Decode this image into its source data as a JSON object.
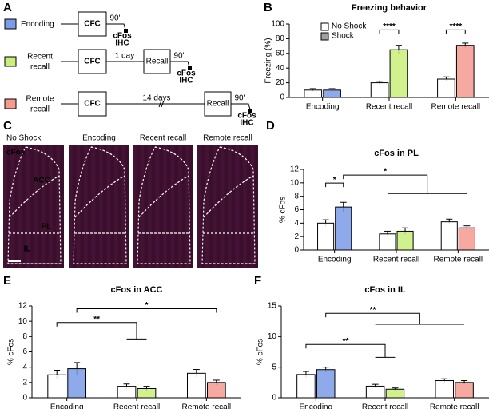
{
  "panel_a": {
    "panel": "A",
    "conditions": [
      {
        "label": "Encoding",
        "color": "#7b9be8"
      },
      {
        "label": "Recent recall",
        "color": "#c8ef7a"
      },
      {
        "label": "Remote recall",
        "color": "#f59a8f"
      }
    ],
    "cfc": "CFC",
    "recall": "Recall",
    "delay": "90'",
    "ihc": [
      "cFos",
      "IHC"
    ],
    "intervals": [
      "1 day",
      "14 days"
    ]
  },
  "panel_c": {
    "panel": "C",
    "columns": [
      "No Shock",
      "Encoding",
      "Recent recall",
      "Remote recall"
    ],
    "stain": "cFos",
    "regions": [
      "ACC",
      "PL",
      "IL"
    ]
  },
  "chart_data": [
    {
      "type": "bar",
      "panel": "B",
      "title": "Freezing behavior",
      "y_label": "Freezing (%)",
      "categories": [
        "Encoding",
        "Recent recall",
        "Remote recall"
      ],
      "series": [
        {
          "name": "No Shock",
          "color": "#ffffff",
          "values": [
            10,
            20,
            25
          ],
          "errors": [
            2,
            2,
            3
          ]
        },
        {
          "name": "Shock",
          "color": "#a0a0a0",
          "colors": [
            "#7b9be8",
            "#c8ef7a",
            "#f59a8f"
          ],
          "values": [
            10,
            65,
            71
          ],
          "errors": [
            2,
            6,
            3
          ]
        }
      ],
      "ylim": [
        0,
        100
      ],
      "yticks": [
        0,
        20,
        40,
        60,
        80,
        100
      ],
      "legend": "upper left",
      "annotations": [
        "****",
        "****"
      ]
    },
    {
      "type": "bar",
      "panel": "D",
      "title": "cFos in PL",
      "y_label": "% cFos",
      "categories": [
        "Encoding",
        "Recent recall",
        "Remote recall"
      ],
      "series": [
        {
          "name": "No Shock",
          "color": "#ffffff",
          "values": [
            4.0,
            2.4,
            4.2
          ],
          "errors": [
            0.5,
            0.4,
            0.4
          ]
        },
        {
          "name": "Shock",
          "color": "#a0a0a0",
          "colors": [
            "#7b9be8",
            "#c8ef7a",
            "#f59a8f"
          ],
          "values": [
            6.4,
            2.8,
            3.3
          ],
          "errors": [
            0.7,
            0.5,
            0.3
          ]
        }
      ],
      "ylim": [
        0,
        12
      ],
      "yticks": [
        0,
        2,
        4,
        6,
        8,
        10,
        12
      ],
      "annotations": [
        "*",
        "*"
      ]
    },
    {
      "type": "bar",
      "panel": "E",
      "title": "cFos in ACC",
      "y_label": "% cFos",
      "categories": [
        "Encoding",
        "Recent recall",
        "Remote recall"
      ],
      "series": [
        {
          "name": "No Shock",
          "color": "#ffffff",
          "values": [
            3.0,
            1.5,
            3.2
          ],
          "errors": [
            0.6,
            0.3,
            0.5
          ]
        },
        {
          "name": "Shock",
          "color": "#a0a0a0",
          "colors": [
            "#7b9be8",
            "#c8ef7a",
            "#f59a8f"
          ],
          "values": [
            3.8,
            1.2,
            2.0
          ],
          "errors": [
            0.8,
            0.3,
            0.3
          ]
        }
      ],
      "ylim": [
        0,
        12
      ],
      "yticks": [
        0,
        2,
        4,
        6,
        8,
        10,
        12
      ],
      "annotations": [
        "**",
        "*"
      ]
    },
    {
      "type": "bar",
      "panel": "F",
      "title": "cFos in IL",
      "y_label": "% cFos",
      "categories": [
        "Encoding",
        "Recent recall",
        "Remote recall"
      ],
      "series": [
        {
          "name": "No Shock",
          "color": "#ffffff",
          "values": [
            3.8,
            1.9,
            2.8
          ],
          "errors": [
            0.5,
            0.3,
            0.3
          ]
        },
        {
          "name": "Shock",
          "color": "#a0a0a0",
          "colors": [
            "#7b9be8",
            "#c8ef7a",
            "#f59a8f"
          ],
          "values": [
            4.6,
            1.4,
            2.5
          ],
          "errors": [
            0.4,
            0.2,
            0.3
          ]
        }
      ],
      "ylim": [
        0,
        15
      ],
      "yticks": [
        0,
        5,
        10,
        15
      ],
      "annotations": [
        "**",
        "**"
      ]
    }
  ]
}
